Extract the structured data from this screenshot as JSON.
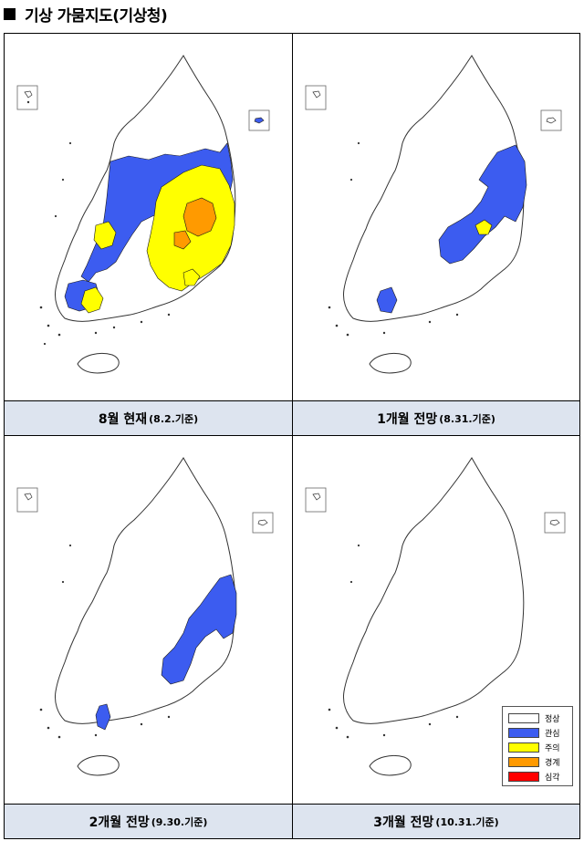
{
  "heading": {
    "title": "기상 가뭄지도(기상청)"
  },
  "legend": [
    {
      "label": "정상",
      "color": "#ffffff"
    },
    {
      "label": "관심",
      "color": "#3c5cf0"
    },
    {
      "label": "주의",
      "color": "#ffff00"
    },
    {
      "label": "경계",
      "color": "#ff9a00"
    },
    {
      "label": "심각",
      "color": "#ff0000"
    }
  ],
  "panels": [
    {
      "title": "8월 현재",
      "date": "(8.2.기준)"
    },
    {
      "title": "1개월 전망",
      "date": "(8.31.기준)"
    },
    {
      "title": "2개월 전망",
      "date": "(9.30.기준)"
    },
    {
      "title": "3개월 전망",
      "date": "(10.31.기준)"
    }
  ]
}
